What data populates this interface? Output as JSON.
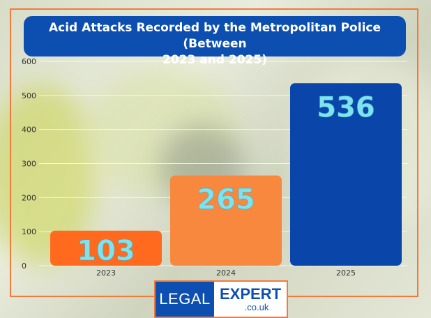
{
  "chart_data": {
    "type": "bar",
    "title": "Acid Attacks Recorded by the Metropolitan Police (Between 2023 and 2025)",
    "title_lines": [
      "Acid Attacks Recorded by the Metropolitan Police (Between",
      "2023 and 2025)"
    ],
    "categories": [
      "2023",
      "2024",
      "2025"
    ],
    "values": [
      103,
      265,
      536
    ],
    "data_labels": [
      "103",
      "265",
      "536"
    ],
    "bar_colors": [
      "#ff6a1f",
      "#f7883e",
      "#0a45aa"
    ],
    "label_color": "#7fe3ef",
    "ylim": [
      0,
      600
    ],
    "yticks": [
      "0",
      "100",
      "200",
      "300",
      "400",
      "500",
      "600"
    ],
    "grid": true,
    "xlabel": "",
    "ylabel": ""
  },
  "logo": {
    "left_text": "LEGAL",
    "right_text": "EXPERT",
    "domain_text": ".co.uk"
  },
  "colors": {
    "title_bg": "#0d4fb0",
    "frame": "#f47a3a"
  }
}
